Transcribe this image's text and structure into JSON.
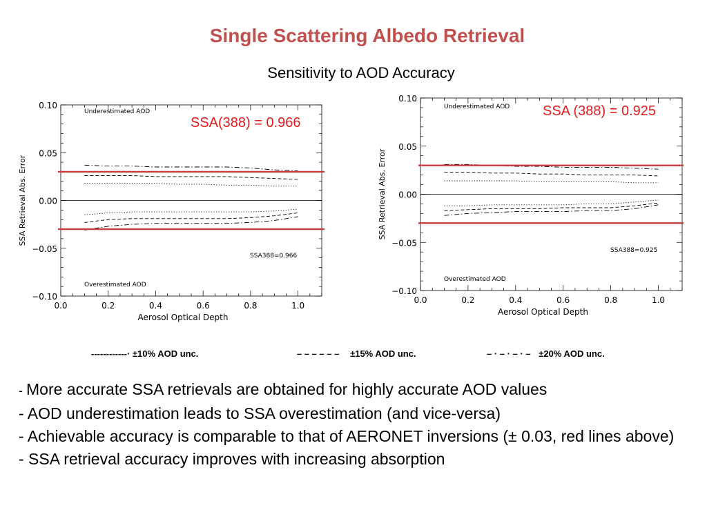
{
  "slide": {
    "title": "Single Scattering Albedo Retrieval",
    "subtitle": "Sensitivity  to AOD Accuracy"
  },
  "chart_data": [
    {
      "type": "line",
      "xlabel": "Aerosol Optical Depth",
      "ylabel": "SSA Retrieval Abs. Error",
      "xlim": [
        0.0,
        1.1
      ],
      "ylim": [
        -0.1,
        0.1
      ],
      "xticks": [
        "0.0",
        "0.2",
        "0.4",
        "0.6",
        "0.8",
        "1.0"
      ],
      "yticks": [
        "0.10",
        "0.05",
        "0.00",
        "−0.05",
        "−0.10"
      ],
      "annotations": [
        "Underestimated AOD",
        "Overestimated AOD",
        "SSA388=0.966",
        "SSA(388) = 0.966"
      ],
      "reference_lines": [
        0.03,
        -0.03
      ],
      "zero_line": 0.0,
      "x": [
        0.1,
        0.2,
        0.3,
        0.4,
        0.5,
        0.6,
        0.7,
        0.8,
        0.9,
        1.0
      ],
      "series": [
        {
          "name": "±10% AOD unc.",
          "style": "dotted",
          "upper": [
            0.018,
            0.018,
            0.018,
            0.018,
            0.017,
            0.017,
            0.016,
            0.016,
            0.015,
            0.015
          ],
          "lower": [
            -0.015,
            -0.013,
            -0.012,
            -0.012,
            -0.012,
            -0.012,
            -0.012,
            -0.012,
            -0.011,
            -0.009
          ]
        },
        {
          "name": "±15% AOD unc.",
          "style": "dashed",
          "upper": [
            0.026,
            0.026,
            0.026,
            0.025,
            0.025,
            0.025,
            0.025,
            0.024,
            0.023,
            0.022
          ],
          "lower": [
            -0.023,
            -0.02,
            -0.019,
            -0.019,
            -0.019,
            -0.019,
            -0.019,
            -0.018,
            -0.016,
            -0.013
          ]
        },
        {
          "name": "±20% AOD unc.",
          "style": "dashdot",
          "upper": [
            0.037,
            0.036,
            0.036,
            0.035,
            0.035,
            0.035,
            0.035,
            0.034,
            0.032,
            0.031
          ],
          "lower": [
            -0.031,
            -0.027,
            -0.025,
            -0.024,
            -0.024,
            -0.024,
            -0.024,
            -0.023,
            -0.021,
            -0.017
          ]
        }
      ]
    },
    {
      "type": "line",
      "xlabel": "Aerosol Optical Depth",
      "ylabel": "SSA Retrieval Abs. Error",
      "xlim": [
        0.0,
        1.1
      ],
      "ylim": [
        -0.1,
        0.1
      ],
      "xticks": [
        "0.0",
        "0.2",
        "0.4",
        "0.6",
        "0.8",
        "1.0"
      ],
      "yticks": [
        "0.10",
        "0.05",
        "0.00",
        "−0.05",
        "−0.10"
      ],
      "annotations": [
        "Underestimated AOD",
        "Overestimated AOD",
        "SSA388=0.925",
        "SSA (388) = 0.925"
      ],
      "reference_lines": [
        0.03,
        -0.03
      ],
      "zero_line": 0.0,
      "x": [
        0.1,
        0.2,
        0.3,
        0.4,
        0.5,
        0.6,
        0.7,
        0.8,
        0.9,
        1.0
      ],
      "series": [
        {
          "name": "±10% AOD unc.",
          "style": "dotted",
          "upper": [
            0.014,
            0.014,
            0.014,
            0.014,
            0.013,
            0.013,
            0.013,
            0.013,
            0.012,
            0.012
          ],
          "lower": [
            -0.012,
            -0.012,
            -0.011,
            -0.011,
            -0.011,
            -0.011,
            -0.01,
            -0.01,
            -0.008,
            -0.006
          ]
        },
        {
          "name": "±15% AOD unc.",
          "style": "dashed",
          "upper": [
            0.023,
            0.023,
            0.022,
            0.022,
            0.021,
            0.021,
            0.02,
            0.02,
            0.02,
            0.019
          ],
          "lower": [
            -0.017,
            -0.016,
            -0.015,
            -0.015,
            -0.015,
            -0.014,
            -0.014,
            -0.014,
            -0.012,
            -0.009
          ]
        },
        {
          "name": "±20% AOD unc.",
          "style": "dashdot",
          "upper": [
            0.031,
            0.031,
            0.03,
            0.029,
            0.029,
            0.028,
            0.028,
            0.028,
            0.027,
            0.026
          ],
          "lower": [
            -0.022,
            -0.02,
            -0.019,
            -0.018,
            -0.018,
            -0.018,
            -0.017,
            -0.017,
            -0.015,
            -0.011
          ]
        }
      ]
    }
  ],
  "legend": [
    {
      "line": "------------·",
      "label": "±10% AOD unc."
    },
    {
      "line": "– – – – – –",
      "label": "±15% AOD unc."
    },
    {
      "line": "– · – · – · –",
      "label": "±20% AOD unc."
    }
  ],
  "bullets": [
    {
      "prefix": "- ",
      "text": "More accurate SSA retrievals are obtained for highly accurate AOD values"
    },
    {
      "prefix": "",
      "text": "- AOD underestimation leads to SSA overestimation (and vice-versa)"
    },
    {
      "prefix": "",
      "text": "-  Achievable accuracy is comparable to that of AERONET inversions (± 0.03, red lines above)"
    },
    {
      "prefix": "",
      "text": "- SSA retrieval accuracy improves with increasing absorption"
    }
  ],
  "colors": {
    "title": "#c0504d",
    "red_line": "#c83c3c",
    "red_text": "#e01b1b"
  }
}
